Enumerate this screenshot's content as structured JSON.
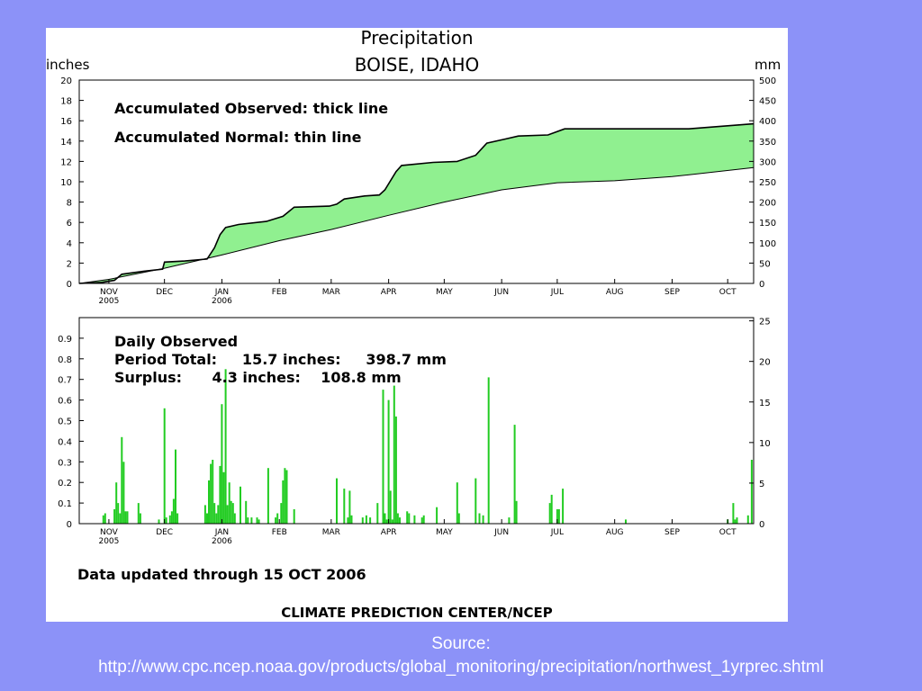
{
  "slide": {
    "source_label": "Source:",
    "source_url": "http://www.cpc.ncep.noaa.gov/products/global_monitoring/precipitation/northwest_1yrprec.shtml"
  },
  "figure": {
    "title": "Precipitation",
    "subtitle": "BOISE, IDAHO",
    "updated_note": "Data updated through 15 OCT 2006",
    "credit": "CLIMATE PREDICTION CENTER/NCEP",
    "line_color": "#000000",
    "fill_color": "#90f090",
    "bar_color": "#22cc22"
  },
  "chart_data": [
    {
      "type": "area",
      "ylabel_left": "inches",
      "ylabel_right": "mm",
      "ylim_left": [
        0,
        20
      ],
      "yticks_left": [
        0,
        2,
        4,
        6,
        8,
        10,
        12,
        14,
        16,
        18,
        20
      ],
      "ylim_right": [
        0,
        500
      ],
      "yticks_right": [
        0,
        50,
        100,
        150,
        200,
        250,
        300,
        350,
        400,
        450,
        500
      ],
      "xlim": [
        "2005-10-16",
        "2006-10-15"
      ],
      "month_ticks": [
        {
          "date": "2005-11-01",
          "label": "NOV",
          "sub": "2005"
        },
        {
          "date": "2005-12-01",
          "label": "DEC",
          "sub": ""
        },
        {
          "date": "2006-01-01",
          "label": "JAN",
          "sub": "2006"
        },
        {
          "date": "2006-02-01",
          "label": "FEB",
          "sub": ""
        },
        {
          "date": "2006-03-01",
          "label": "MAR",
          "sub": ""
        },
        {
          "date": "2006-04-01",
          "label": "APR",
          "sub": ""
        },
        {
          "date": "2006-05-01",
          "label": "MAY",
          "sub": ""
        },
        {
          "date": "2006-06-01",
          "label": "JUN",
          "sub": ""
        },
        {
          "date": "2006-07-01",
          "label": "JUL",
          "sub": ""
        },
        {
          "date": "2006-08-01",
          "label": "AUG",
          "sub": ""
        },
        {
          "date": "2006-09-01",
          "label": "SEP",
          "sub": ""
        },
        {
          "date": "2006-10-01",
          "label": "OCT",
          "sub": ""
        }
      ],
      "legend": [
        "Accumulated Observed: thick line",
        "Accumulated Normal: thin line"
      ],
      "series": [
        {
          "style": "thick",
          "points": [
            [
              "2005-10-16",
              0
            ],
            [
              "2005-10-28",
              0.1
            ],
            [
              "2005-11-04",
              0.3
            ],
            [
              "2005-11-08",
              0.9
            ],
            [
              "2005-11-20",
              1.2
            ],
            [
              "2005-11-30",
              1.4
            ],
            [
              "2005-12-01",
              2.1
            ],
            [
              "2005-12-12",
              2.2
            ],
            [
              "2005-12-24",
              2.4
            ],
            [
              "2005-12-28",
              3.5
            ],
            [
              "2005-12-31",
              4.8
            ],
            [
              "2006-01-03",
              5.5
            ],
            [
              "2006-01-10",
              5.8
            ],
            [
              "2006-01-25",
              6.1
            ],
            [
              "2006-02-03",
              6.6
            ],
            [
              "2006-02-09",
              7.5
            ],
            [
              "2006-02-28",
              7.6
            ],
            [
              "2006-03-04",
              7.8
            ],
            [
              "2006-03-08",
              8.3
            ],
            [
              "2006-03-19",
              8.6
            ],
            [
              "2006-03-27",
              8.7
            ],
            [
              "2006-03-30",
              9.2
            ],
            [
              "2006-04-05",
              11.0
            ],
            [
              "2006-04-08",
              11.6
            ],
            [
              "2006-04-25",
              11.9
            ],
            [
              "2006-05-08",
              12.0
            ],
            [
              "2006-05-18",
              12.6
            ],
            [
              "2006-05-24",
              13.8
            ],
            [
              "2006-06-03",
              14.2
            ],
            [
              "2006-06-10",
              14.5
            ],
            [
              "2006-06-26",
              14.6
            ],
            [
              "2006-07-05",
              15.2
            ],
            [
              "2006-09-10",
              15.2
            ],
            [
              "2006-10-15",
              15.7
            ]
          ]
        },
        {
          "style": "thin",
          "points": [
            [
              "2005-10-16",
              0
            ],
            [
              "2005-11-01",
              0.4
            ],
            [
              "2005-12-01",
              1.5
            ],
            [
              "2006-01-01",
              2.8
            ],
            [
              "2006-02-01",
              4.2
            ],
            [
              "2006-03-01",
              5.3
            ],
            [
              "2006-04-01",
              6.7
            ],
            [
              "2006-05-01",
              8.0
            ],
            [
              "2006-06-01",
              9.2
            ],
            [
              "2006-07-01",
              9.9
            ],
            [
              "2006-08-01",
              10.1
            ],
            [
              "2006-09-01",
              10.5
            ],
            [
              "2006-10-15",
              11.4
            ]
          ]
        }
      ]
    },
    {
      "type": "bar",
      "ylim_left": [
        0,
        1.0
      ],
      "yticks_left": [
        0,
        0.1,
        0.2,
        0.3,
        0.4,
        0.5,
        0.6,
        0.7,
        0.8,
        0.9
      ],
      "ytick_labels_left": [
        "0",
        "0.1",
        "0.2",
        "0.3",
        "0.4",
        "0.5",
        "0.6",
        "0.7",
        "0.8",
        "0.9"
      ],
      "ylim_right": [
        0,
        25.4
      ],
      "yticks_right": [
        0,
        5,
        10,
        15,
        20,
        25
      ],
      "xlim": [
        "2005-10-16",
        "2006-10-15"
      ],
      "text_block": [
        "Daily Observed",
        "Period Total:     15.7 inches:     398.7 mm",
        "Surplus:      4.3 inches:    108.8 mm"
      ],
      "bars": [
        [
          "2005-10-29",
          0.04
        ],
        [
          "2005-10-30",
          0.05
        ],
        [
          "2005-11-04",
          0.07
        ],
        [
          "2005-11-05",
          0.2
        ],
        [
          "2005-11-06",
          0.1
        ],
        [
          "2005-11-07",
          0.05
        ],
        [
          "2005-11-08",
          0.42
        ],
        [
          "2005-11-09",
          0.3
        ],
        [
          "2005-11-10",
          0.06
        ],
        [
          "2005-11-11",
          0.06
        ],
        [
          "2005-11-17",
          0.1
        ],
        [
          "2005-11-18",
          0.05
        ],
        [
          "2005-11-28",
          0.02
        ],
        [
          "2005-12-01",
          0.56
        ],
        [
          "2005-12-02",
          0.03
        ],
        [
          "2005-12-04",
          0.04
        ],
        [
          "2005-12-05",
          0.06
        ],
        [
          "2005-12-06",
          0.12
        ],
        [
          "2005-12-07",
          0.36
        ],
        [
          "2005-12-08",
          0.05
        ],
        [
          "2005-12-23",
          0.09
        ],
        [
          "2005-12-24",
          0.05
        ],
        [
          "2005-12-25",
          0.21
        ],
        [
          "2005-12-26",
          0.29
        ],
        [
          "2005-12-27",
          0.31
        ],
        [
          "2005-12-28",
          0.1
        ],
        [
          "2005-12-29",
          0.05
        ],
        [
          "2005-12-30",
          0.09
        ],
        [
          "2005-12-31",
          0.28
        ],
        [
          "2006-01-01",
          0.58
        ],
        [
          "2006-01-02",
          0.25
        ],
        [
          "2006-01-03",
          0.75
        ],
        [
          "2006-01-04",
          0.09
        ],
        [
          "2006-01-05",
          0.2
        ],
        [
          "2006-01-06",
          0.11
        ],
        [
          "2006-01-07",
          0.1
        ],
        [
          "2006-01-08",
          0.05
        ],
        [
          "2006-01-11",
          0.18
        ],
        [
          "2006-01-14",
          0.11
        ],
        [
          "2006-01-15",
          0.03
        ],
        [
          "2006-01-17",
          0.03
        ],
        [
          "2006-01-20",
          0.03
        ],
        [
          "2006-01-21",
          0.02
        ],
        [
          "2006-01-26",
          0.27
        ],
        [
          "2006-01-30",
          0.03
        ],
        [
          "2006-01-31",
          0.05
        ],
        [
          "2006-02-02",
          0.1
        ],
        [
          "2006-02-03",
          0.21
        ],
        [
          "2006-02-04",
          0.27
        ],
        [
          "2006-02-05",
          0.26
        ],
        [
          "2006-02-09",
          0.07
        ],
        [
          "2006-03-04",
          0.22
        ],
        [
          "2006-03-08",
          0.17
        ],
        [
          "2006-03-10",
          0.03
        ],
        [
          "2006-03-11",
          0.16
        ],
        [
          "2006-03-12",
          0.04
        ],
        [
          "2006-03-18",
          0.03
        ],
        [
          "2006-03-20",
          0.04
        ],
        [
          "2006-03-22",
          0.03
        ],
        [
          "2006-03-26",
          0.1
        ],
        [
          "2006-03-29",
          0.65
        ],
        [
          "2006-03-30",
          0.05
        ],
        [
          "2006-03-31",
          0.02
        ],
        [
          "2006-04-01",
          0.6
        ],
        [
          "2006-04-02",
          0.16
        ],
        [
          "2006-04-03",
          0.02
        ],
        [
          "2006-04-04",
          0.67
        ],
        [
          "2006-04-05",
          0.52
        ],
        [
          "2006-04-06",
          0.05
        ],
        [
          "2006-04-07",
          0.03
        ],
        [
          "2006-04-11",
          0.06
        ],
        [
          "2006-04-12",
          0.05
        ],
        [
          "2006-04-15",
          0.04
        ],
        [
          "2006-04-19",
          0.03
        ],
        [
          "2006-04-20",
          0.04
        ],
        [
          "2006-04-27",
          0.08
        ],
        [
          "2006-05-08",
          0.2
        ],
        [
          "2006-05-09",
          0.05
        ],
        [
          "2006-05-18",
          0.22
        ],
        [
          "2006-05-20",
          0.05
        ],
        [
          "2006-05-22",
          0.04
        ],
        [
          "2006-05-25",
          0.71
        ],
        [
          "2006-06-05",
          0.03
        ],
        [
          "2006-06-08",
          0.48
        ],
        [
          "2006-06-09",
          0.11
        ],
        [
          "2006-06-27",
          0.1
        ],
        [
          "2006-06-28",
          0.14
        ],
        [
          "2006-07-01",
          0.07
        ],
        [
          "2006-07-02",
          0.07
        ],
        [
          "2006-07-04",
          0.17
        ],
        [
          "2006-08-07",
          0.02
        ],
        [
          "2006-10-01",
          0.02
        ],
        [
          "2006-10-04",
          0.1
        ],
        [
          "2006-10-05",
          0.02
        ],
        [
          "2006-10-06",
          0.03
        ],
        [
          "2006-10-12",
          0.04
        ],
        [
          "2006-10-14",
          0.31
        ]
      ]
    }
  ]
}
